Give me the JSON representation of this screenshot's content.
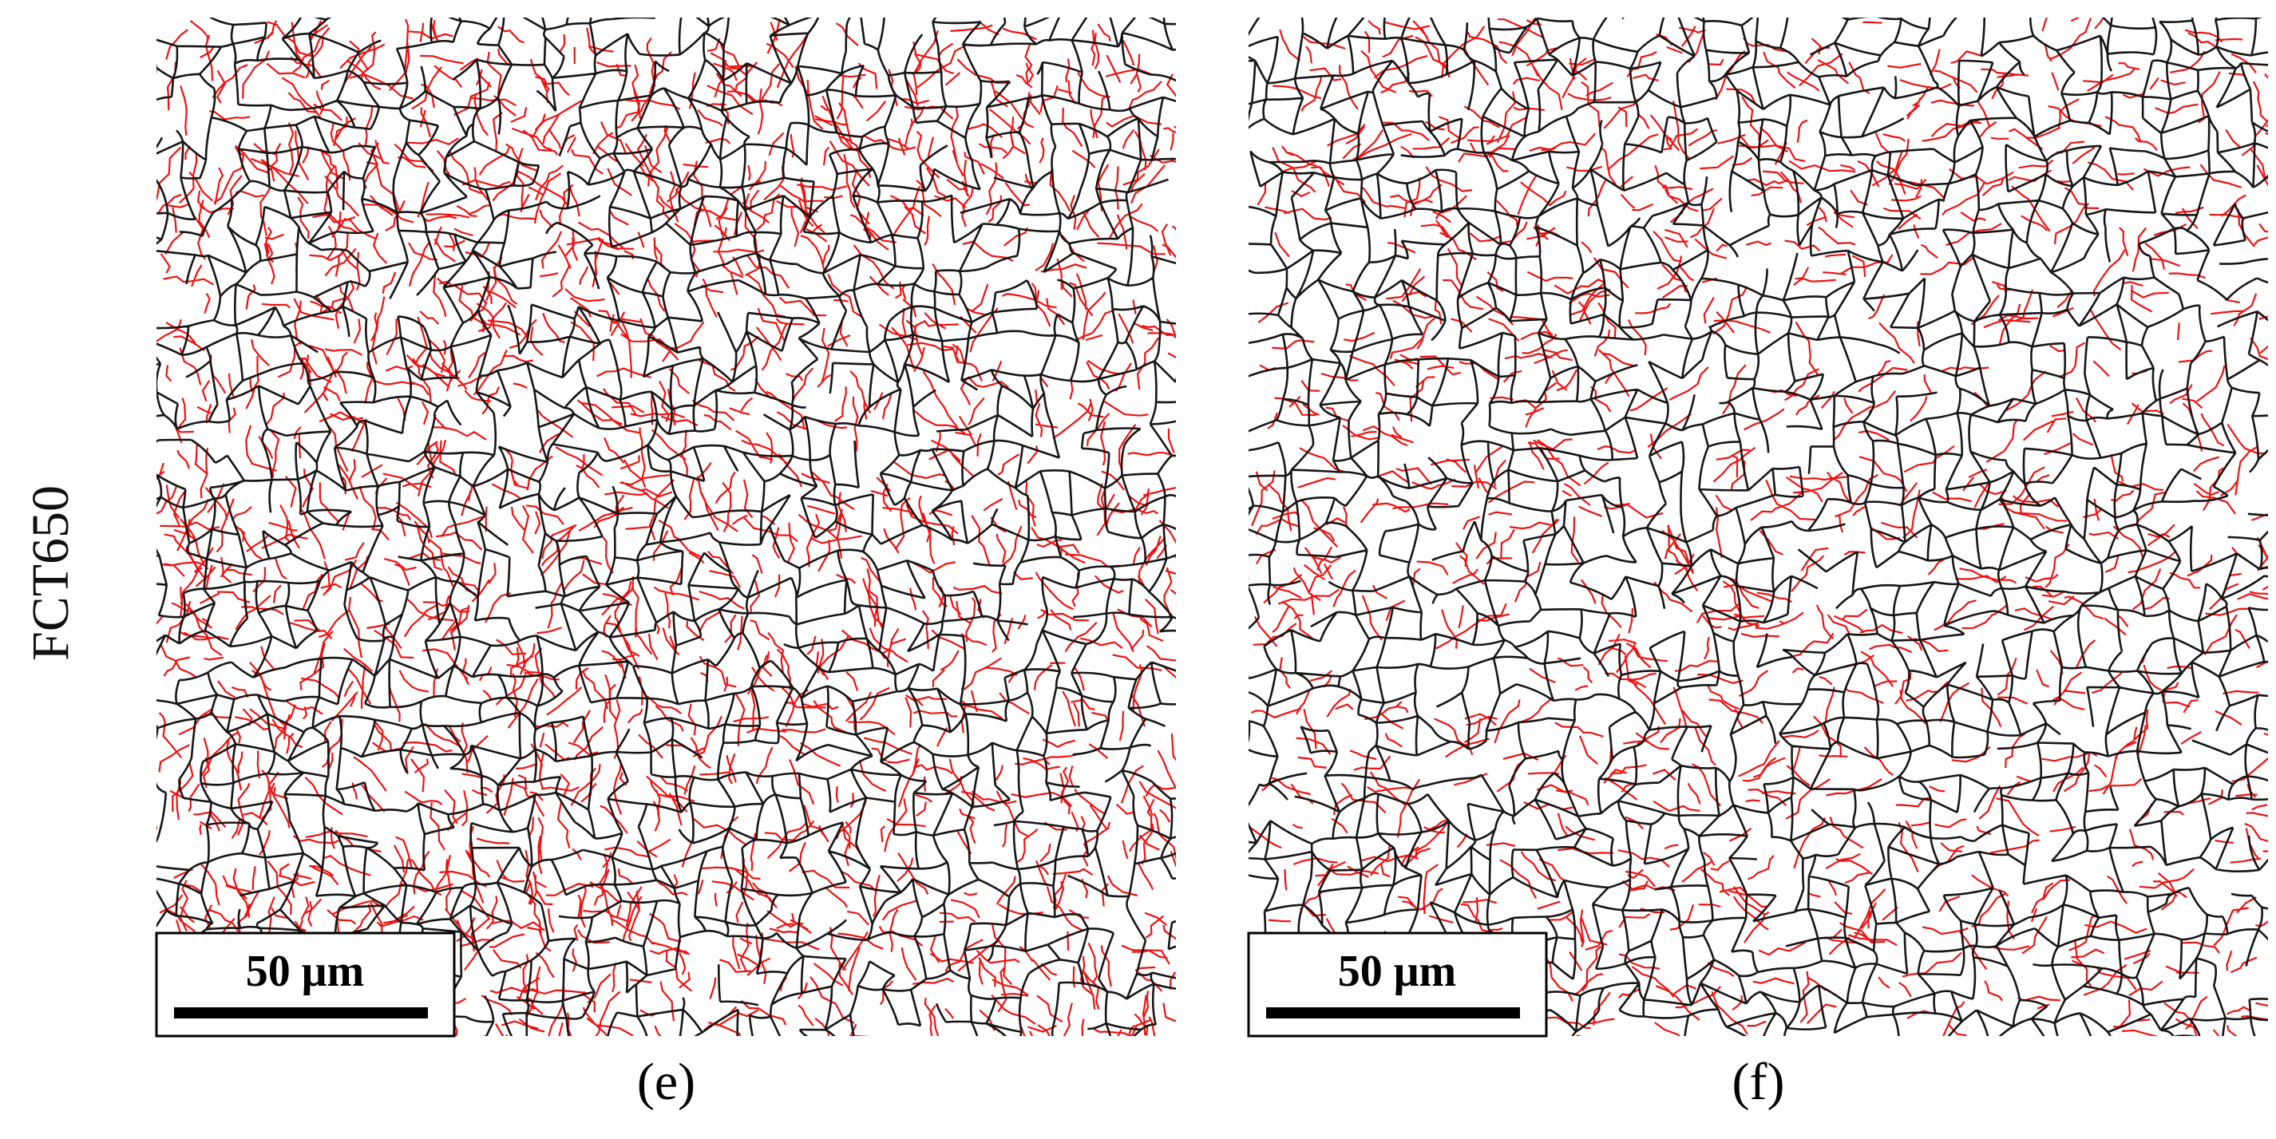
{
  "row_label": "FCT650",
  "panels": [
    {
      "label": "(e)",
      "scale_bar": "50 μm"
    },
    {
      "label": "(f)",
      "scale_bar": "50 μm"
    }
  ]
}
